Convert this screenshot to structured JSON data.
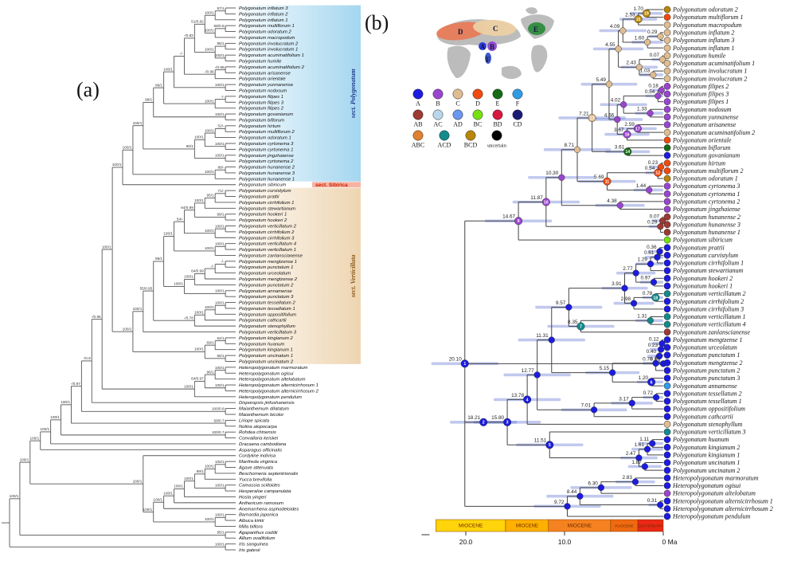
{
  "figure": {
    "panel_a_label": "(a)",
    "panel_b_label": "(b)"
  },
  "legend": {
    "rows": [
      [
        "A",
        "B",
        "C",
        "D",
        "E",
        "F"
      ],
      [
        "AB",
        "AC",
        "AD",
        "BC",
        "BD",
        "CD"
      ],
      [
        "ABC",
        "ACD",
        "BCD",
        "uncertain"
      ]
    ]
  },
  "area_colors": {
    "A": "#1c1ce0",
    "B": "#9a45cf",
    "C": "#dfbd92",
    "D": "#f14a0e",
    "E": "#166b16",
    "F": "#2f9ce8",
    "AB": "#9d3a33",
    "AC": "#b8d8ea",
    "AD": "#6b97ef",
    "BC": "#77e010",
    "BD": "#d8173f",
    "CD": "#1b1b77",
    "ABC": "#e08030",
    "ACD": "#128b8b",
    "BCD": "#b8860b",
    "uncertain": "#000000"
  },
  "map": {
    "region_labels": [
      "D",
      "C",
      "A",
      "B",
      "F",
      "E"
    ],
    "region_colors": {
      "D": "#e87a55",
      "C": "#ecd0a4",
      "A": "#2233dd",
      "B": "#8a46cc",
      "F": "#3050c8",
      "E": "#2e8b3d"
    }
  },
  "panel_a": {
    "sections": [
      {
        "name": "sect. Polygonatum",
        "start": 0,
        "end": 29,
        "band": "#9fd4ef",
        "label_color": "#1d3d8f"
      },
      {
        "name": "sect. Sibirica",
        "start": 30,
        "end": 30,
        "band": "#f5b3a4",
        "label_color": "#cc2200"
      },
      {
        "name": "sect. Verticillata",
        "start": 31,
        "end": 60,
        "band": "#edd3ad",
        "label_color": "#8a5a1a"
      }
    ],
    "newick": "((((((((((((((((((((((Polygonatum_inflatum_3,Polygonatum_inflatum_2)97/1,Polygonatum_inflatum_1)100/1,((Polygonatum_multiflorum_1,Polygonatum_odoratum_2)58/0.8,Polygonatum_macropodum)100/1)51/0.82,((Polygonatum_involucratum_2,Polygonatum_involucratum_1)95/1,(Polygonatum_acuminatifolium_1,Polygonatum_humile)100/1)100/1)-/0.82,((Polygonatum_acuminatifolium_2,Polygonatum_arisanense)-/0.98,Polygonatum_orientale)-/0.96)-/-,(Polygonatum_yunnanense,Polygonatum_nodosum)100/1)100/1,((Polygonatum_filipes_1,Polygonatum_filipes_3)-/-,Polygonatum_filipes_2)100/1)99/1,(Polygonatum_govanianum,Polygonatum_biflorum)100/1)99/1,((((Polygonatum_hirtum,Polygonatum_multiflorum_2)52/-,Polygonatum_odoratum_1)100/1,(Polygonatum_cyrtonema_3,Polygonatum_cyrtonema_1)100/1)100/1,(Polygonatum_jingzhaiense,Polygonatum_cyrtonema_2)100/1)90/1)100/1,((Polygonatum_hunanense_2,Polygonatum_hunanense_3)88/-,Polygonatum_hunanense_1)100/1)100/1,Polygonatum_sibiricum)100/1,((((((((((Polygonatum_curvistylum,Polygonatum_prattii)71/-,Polygonatum_cirrhifolium_1)95/1,Polygonatum_stewartianum)100/1,(Polygonatum_hookeri_1,Polygonatum_hookeri_2)99/1)64/0.99,((Polygonatum_verticillatum_2,Polygonatum_cirrhifolium_2)100/1,Polygonatum_cirrhifolium_3)100/1)54/-,((Polygonatum_verticillatum_4,Polygonatum_verticillatum_1)100/1,Polygonatum_zanlanscianense)100/1)100/1,(((((Polygonatum_mengtzense_1,Polygonatum_punctatum_1)-/-,Polygonatum_urceolatum)-/-,Polygonatum_mengtzense_2)64/0.99,Polygonatum_punctatum_2)100/1,(Polygonatum_annamense,Polygonatum_punctatum_3)100/1)100/1)99/1,((((Polygonatum_tessellatum_2,Polygonatum_tessellatum_1)100/1,Polygonatum_oppositifolium)100/1,Polygonatum_cathcartii)100/1,Polygonatum_stenophyllum)-/0.78)55/0.95,Polygonatum_verticillatum_3)100/1,(((Polygonatum_kingianum_2,Polygonatum_huanum)62/1,Polygonatum_kingianum_1)69/1,(Polygonatum_uncinatum_1,Polygonatum_uncinatum_2)55/1)100/1)100/1)100/1,((((Heteropolygonatum_marmoratum,Heteropolygonatum_ogisui)100/1,Heteropolygonatum_altelobatum)96/1,(Heteropolygonatum_alternicirrhosum_1,Heteropolygonatum_alternicirrhosum_2)100/1)64/0.97,Heteropolygonatum_pendulum)100/1)-/0.96,Disporopsis_jinfushanensis)-/0.9,(Maianthemum_dilatatum,Maianthemum_bicolor)100/0.8)-/0.97,(Liriope_spicata,Nolina_atopocarpa)58/0.7)100/1,(Rohdea_chinensis,Convallaria_keiskei)100/0.7)100/1,Dracaena_cambodiana)100/1,Asparagus_officinalis)100/1,(Cordyline_indivisa,((((((((Manfreda_virginica,Agave_attenuata)100/1,Beschorneria_septentrionalis)100/1,Yucca_brevifolia)99/1,(Camassia_scilloides,Hesperaloe_campanulata)100/1)100/1,Hosta_yingeri)100/1,Anthericum_ramosum)100/1,Anemarrhena_asphodeloides)100/1,((Barnardia_japonica,Albuca_kirkii)100/1,Milla_biflora)100/1)100/1)100/1)100/1,(Agapanthus_coddii,Allium_ovalifolium)95/1)100/1,(Iris_sanguinea,Iris_gatesii)100/1)"
  },
  "panel_b": {
    "newick": "((((((((((((Polygonatum_odoratum_2,Polygonatum_multiflorum_1)1.70#19,Polygonatum_macropodum)2.53#15,((Polygonatum_inflatum_2,Polygonatum_inflatum_3)0.29,Polygonatum_inflatum_1)1.60)4.09,((Polygonatum_humile,Polygonatum_acuminatifolium_1)0.07,(Polygonatum_involucratum_1,Polygonatum_involucratum_2)1.03)2.43)4.55,((((Polygonatum_filipes_2,Polygonatum_filipes_3)0.18,Polygonatum_filipes_1)0.54,(Polygonatum_nodosum,Polygonatum_yunnanense)1.33)4.02,((Polygonatum_arisanense,Polygonatum_acuminatifolium_2)2.59#17,Polygonatum_orientale)3.67#16)4.66)5.49,(Polygonatum_biflorum,Polygonatum_govanianum)3.61#14)7.21#13,(((Polygonatum_hirtum,Polygonatum_multiflorum_2)0.23,Polygonatum_odoratum_1)0.54#12,(Polygonatum_cyrtonema_3,Polygonatum_cyrtonema_1)1.44)5.69#11)8.71,(Polygonatum_cyrtonema_2,Polygonatum_jingzhaiense)4.38)10.30,((Polygonatum_hunanense_2,Polygonatum_hunanense_3)0.07,Polygonatum_hunanense_1)0.29)11.87#10,Polygonatum_sibiricum)14.67#9,(((((((((((Polygonatum_prattii,Polygonatum_curvistylum)0.36,Polygonatum_cirrhifolium_1)0.61,Polygonatum_stewartianum)1.29,(Polygonatum_hookeri_2,Polygonatum_hookeri_1)0.97)2.77,((Polygonatum_verticillatum_2,Polygonatum_cirrhifolium_2)0.78#18,Polygonatum_cirrhifolium_3)2.98)3.91,((Polygonatum_verticillatum_1,Polygonatum_verticillatum_4)1.31,Polygonatum_zanlanscianense)8.35#7)9.57,(((((Polygonatum_mengtzense_1,Polygonatum_urceolatum)0.12,Polygonatum_punctatum_1)0.23,Polygonatum_mengtzense_2)0.40,Polygonatum_punctatum_2)0.76,(Polygonatum_punctatum_3,Polygonatum_annamense)1.20#6)5.15)11.31,(((Polygonatum_tessellatum_2,Polygonatum_tessellatum_1)0.72,Polygonatum_oppositifolium)3.17,Polygonatum_cathcartii)7.01)12.77,Polygonatum_stenophyllum)13.78#4,(Polygonatum_verticillatum_3,(((Polygonatum_huanum,Polygonatum_kingianum_2)1.11,Polygonatum_kingianum_1)1.61,(Polygonatum_uncinatum_1,Polygonatum_uncinatum_2)1.87)2.47)11.51#5)15.80#3)18.21#2,((((Heteropolygonatum_marmoratum,Heteropolygonatum_ogisui)2.83,Heteropolygonatum_altelobatum)6.30,(Heteropolygonatum_alternicirrhosum_1,Heteropolygonatum_alternicirrhosum_2)0.31)8.44,Heteropolygonatum_pendulum)9.72)20.10#1",
    "tip_areas": [
      "BCD",
      "D",
      "C",
      "C",
      "C",
      "C",
      "C",
      "C",
      "C",
      "C",
      "B",
      "B",
      "B",
      "B",
      "B",
      "B",
      "C",
      "D",
      "E",
      "A",
      "D",
      "D",
      "BCD",
      "B",
      "B",
      "B",
      "B",
      "AB",
      "AB",
      "AB",
      "BC",
      "A",
      "A",
      "A",
      "A",
      "A",
      "A",
      "ACD",
      "A",
      "A",
      "ACD",
      "ACD",
      "AB",
      "A",
      "A",
      "A",
      "A",
      "A",
      "A",
      "F",
      "A",
      "A",
      "A",
      "A",
      "C",
      "ACD",
      "A",
      "A",
      "A",
      "A",
      "A",
      "A",
      "A",
      "B",
      "A",
      "A",
      "A"
    ]
  },
  "timescale": {
    "segments": [
      {
        "label": "MIOCENE",
        "start": 23.03,
        "end": 15.97,
        "color": "#ffd40a"
      },
      {
        "label": "MIOCENE",
        "start": 15.97,
        "end": 11.63,
        "color": "#ffb000"
      },
      {
        "label": "MIOCENE",
        "start": 11.63,
        "end": 5.33,
        "color": "#f58220"
      },
      {
        "label": "PLIOCENE",
        "start": 5.33,
        "end": 2.58,
        "color": "#ef6a10"
      },
      {
        "label": "QUATERNARY",
        "start": 2.58,
        "end": 0,
        "color": "#ea2815"
      }
    ],
    "ticks": [
      {
        "age": 20,
        "label": "20.0"
      },
      {
        "age": 10,
        "label": "10.0"
      },
      {
        "age": 0,
        "label": "0 Ma"
      }
    ]
  }
}
